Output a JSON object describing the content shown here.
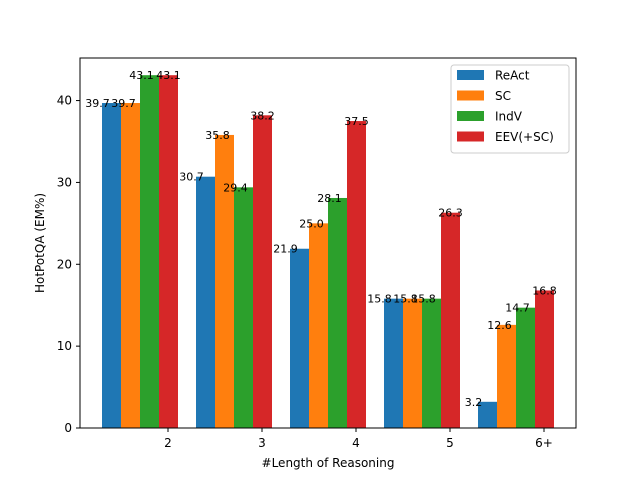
{
  "chart_data": {
    "type": "bar",
    "xlabel": "#Length of Reasoning",
    "ylabel": "HotPotQA (EM%)",
    "categories": [
      "2",
      "3",
      "4",
      "5",
      "6+"
    ],
    "ylim": [
      0,
      45.2
    ],
    "yticks": [
      0,
      10,
      20,
      30,
      40
    ],
    "grid": false,
    "legend_position": "top-right",
    "series": [
      {
        "name": "ReAct",
        "color": "#1f77b4",
        "values": [
          39.7,
          30.7,
          21.9,
          15.8,
          3.2
        ]
      },
      {
        "name": "SC",
        "color": "#ff7f0e",
        "values": [
          39.7,
          35.8,
          25.0,
          15.8,
          12.6
        ]
      },
      {
        "name": "IndV",
        "color": "#2ca02c",
        "values": [
          43.1,
          29.4,
          28.1,
          15.8,
          14.7
        ]
      },
      {
        "name": "EEV(+SC)",
        "color": "#d62728",
        "values": [
          43.1,
          38.2,
          37.5,
          26.3,
          16.8
        ]
      }
    ]
  }
}
